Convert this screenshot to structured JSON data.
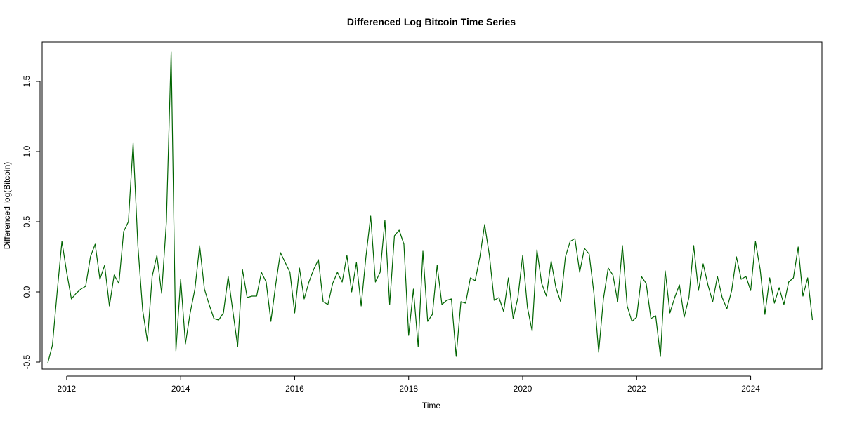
{
  "chart_data": {
    "type": "line",
    "title": "Differenced Log Bitcoin Time Series",
    "xlabel": "Time",
    "ylabel": "Differenced log(Bitcoin)",
    "xlim": [
      2011.57,
      2025.25
    ],
    "ylim": [
      -0.55,
      1.78
    ],
    "x_ticks": [
      2012,
      2014,
      2016,
      2018,
      2020,
      2022,
      2024
    ],
    "x_tick_labels": [
      "2012",
      "2014",
      "2016",
      "2018",
      "2020",
      "2022",
      "2024"
    ],
    "y_ticks": [
      -0.5,
      0.0,
      0.5,
      1.0,
      1.5
    ],
    "y_tick_labels": [
      "-0.5",
      "0.0",
      "0.5",
      "1.0",
      "1.5"
    ],
    "grid": false,
    "line_color": "#006400",
    "series": [
      {
        "start_year": 2011,
        "start_month": 9,
        "frequency": "monthly",
        "values": [
          -0.51,
          -0.38,
          0.0,
          0.36,
          0.14,
          -0.05,
          -0.01,
          0.02,
          0.04,
          0.25,
          0.34,
          0.09,
          0.19,
          -0.1,
          0.12,
          0.06,
          0.43,
          0.5,
          1.06,
          0.33,
          -0.13,
          -0.35,
          0.11,
          0.26,
          -0.01,
          0.5,
          1.71,
          -0.42,
          0.09,
          -0.37,
          -0.15,
          0.02,
          0.33,
          0.02,
          -0.09,
          -0.19,
          -0.2,
          -0.15,
          0.11,
          -0.14,
          -0.39,
          0.16,
          -0.04,
          -0.03,
          -0.03,
          0.14,
          0.07,
          -0.21,
          0.05,
          0.28,
          0.21,
          0.14,
          -0.15,
          0.17,
          -0.05,
          0.07,
          0.16,
          0.23,
          -0.07,
          -0.09,
          0.06,
          0.14,
          0.07,
          0.26,
          0.0,
          0.21,
          -0.1,
          0.25,
          0.54,
          0.07,
          0.14,
          0.51,
          -0.09,
          0.4,
          0.44,
          0.34,
          -0.31,
          0.02,
          -0.39,
          0.29,
          -0.21,
          -0.16,
          0.19,
          -0.09,
          -0.06,
          -0.05,
          -0.46,
          -0.07,
          -0.08,
          0.1,
          0.08,
          0.25,
          0.48,
          0.26,
          -0.06,
          -0.04,
          -0.14,
          0.1,
          -0.19,
          -0.04,
          0.26,
          -0.11,
          -0.28,
          0.3,
          0.06,
          -0.03,
          0.22,
          0.03,
          -0.07,
          0.25,
          0.36,
          0.38,
          0.14,
          0.31,
          0.27,
          -0.01,
          -0.43,
          -0.05,
          0.17,
          0.12,
          -0.07,
          0.33,
          -0.1,
          -0.21,
          -0.18,
          0.11,
          0.06,
          -0.19,
          -0.17,
          -0.46,
          0.15,
          -0.15,
          -0.04,
          0.05,
          -0.18,
          -0.04,
          0.33,
          0.01,
          0.2,
          0.05,
          -0.07,
          0.11,
          -0.04,
          -0.12,
          0.01,
          0.25,
          0.09,
          0.11,
          0.01,
          0.36,
          0.16,
          -0.16,
          0.1,
          -0.08,
          0.03,
          -0.09,
          0.07,
          0.1,
          0.32,
          -0.03,
          0.1,
          -0.2
        ]
      }
    ]
  }
}
